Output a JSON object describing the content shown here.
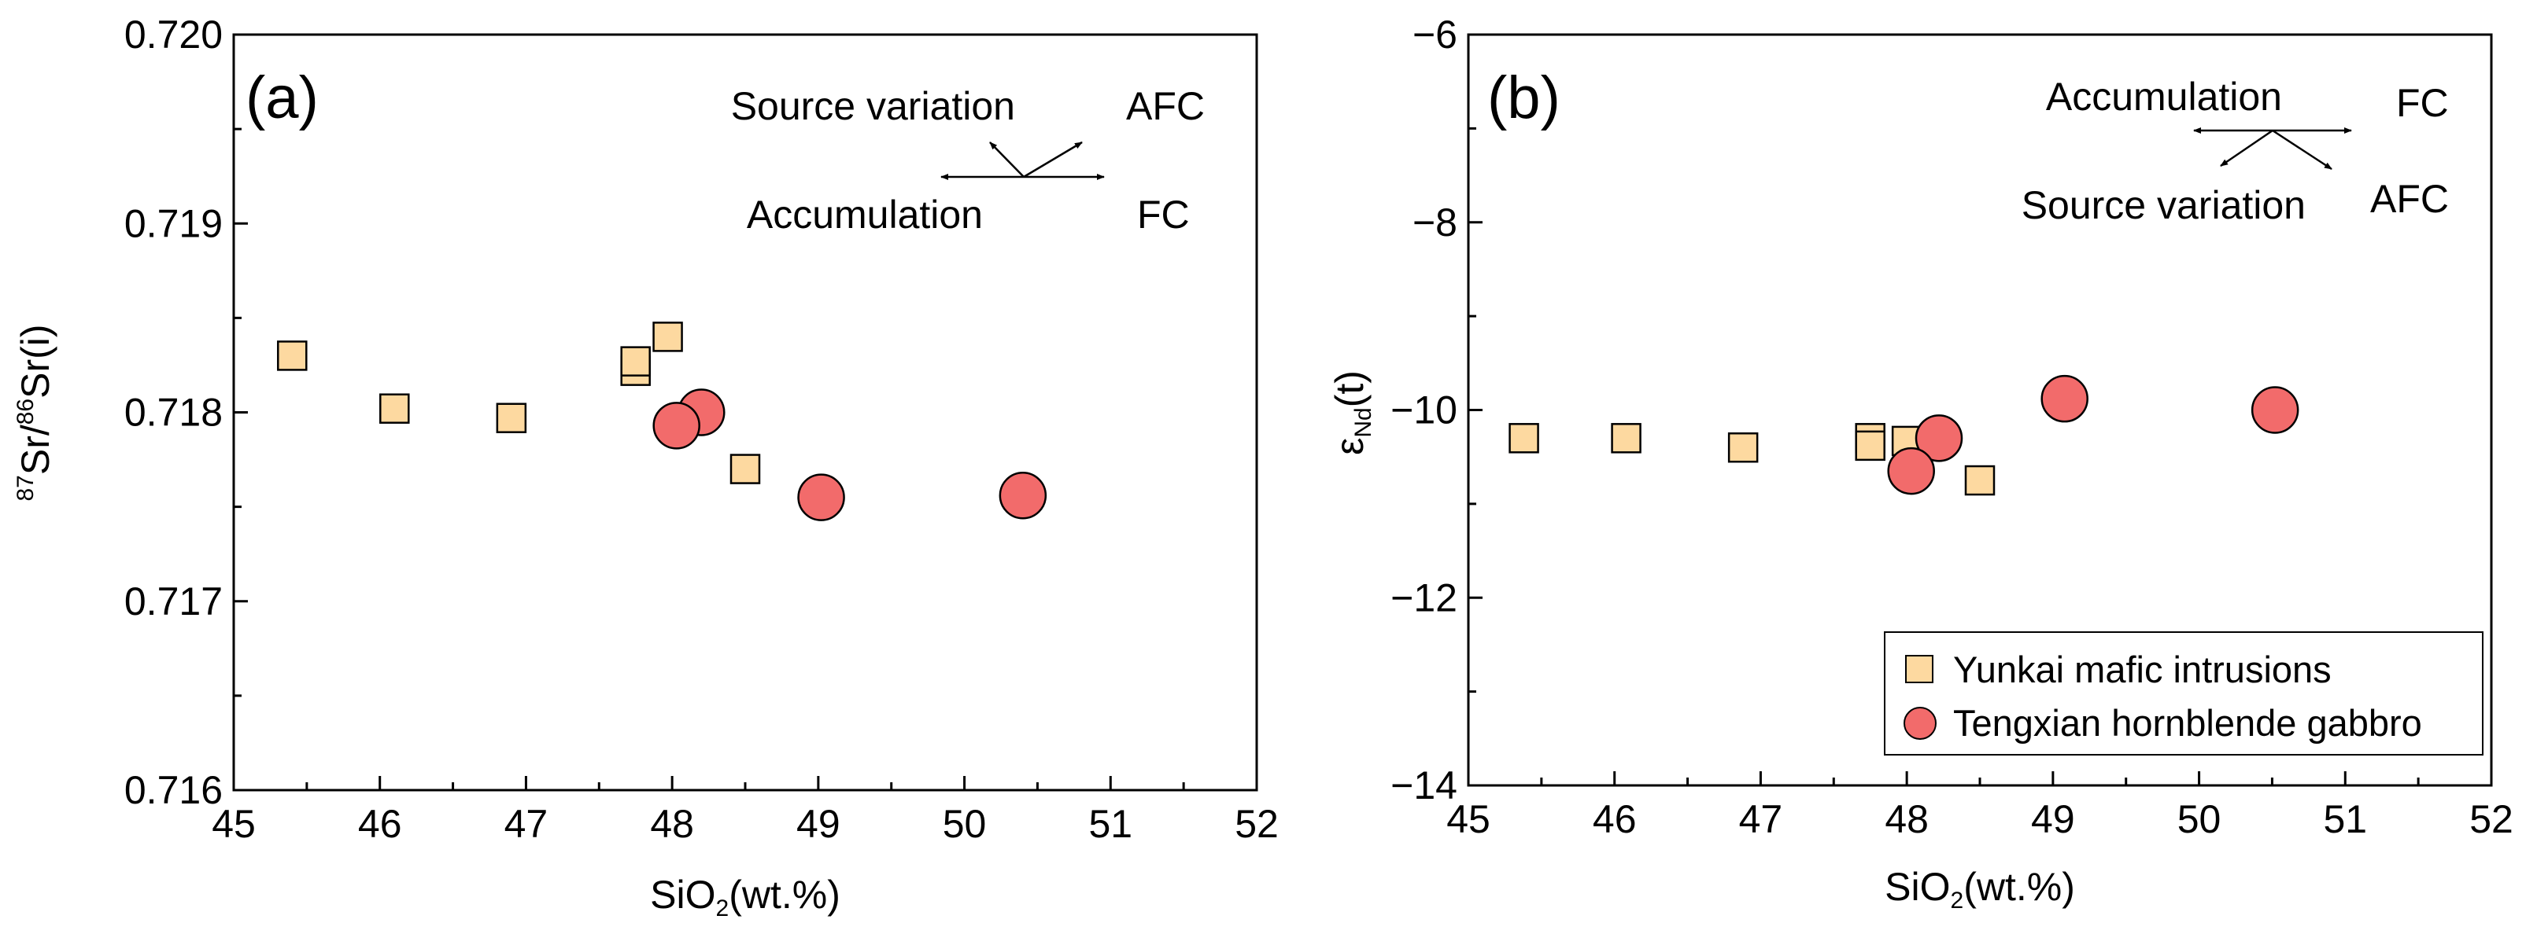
{
  "chart_data": [
    {
      "type": "scatter",
      "panel_label": "(a)",
      "xlabel": "SiO",
      "xlabel_sub": "2",
      "xlabel_tail": "(wt.%)",
      "ylabel": "Sr/ Sr(i)",
      "ylabel_sup1": "87",
      "ylabel_sup2": "86",
      "xlim": [
        45,
        52
      ],
      "ylim": [
        0.716,
        0.72
      ],
      "xticks": [
        45,
        46,
        47,
        48,
        49,
        50,
        51,
        52
      ],
      "xtick_labels": [
        "45",
        "46",
        "47",
        "48",
        "49",
        "50",
        "51",
        "52"
      ],
      "yticks": [
        0.716,
        0.717,
        0.718,
        0.719,
        0.72
      ],
      "ytick_labels": [
        "0.716",
        "0.717",
        "0.718",
        "0.719",
        "0.720"
      ],
      "series": [
        {
          "name": "Yunkai mafic intrusions",
          "marker": "square",
          "color": "#fdd9a0",
          "points": [
            {
              "x": 45.4,
              "y": 0.7183
            },
            {
              "x": 46.1,
              "y": 0.71802
            },
            {
              "x": 46.9,
              "y": 0.71797
            },
            {
              "x": 47.75,
              "y": 0.71822
            },
            {
              "x": 47.75,
              "y": 0.71827
            },
            {
              "x": 47.97,
              "y": 0.7184
            },
            {
              "x": 48.5,
              "y": 0.7177
            }
          ]
        },
        {
          "name": "Tengxian hornblende gabbro",
          "marker": "circle",
          "color": "#f26b6b",
          "points": [
            {
              "x": 48.2,
              "y": 0.718
            },
            {
              "x": 48.03,
              "y": 0.71793
            },
            {
              "x": 49.02,
              "y": 0.71755
            },
            {
              "x": 50.4,
              "y": 0.71756
            }
          ]
        }
      ],
      "annotations": {
        "source_variation": "Source variation",
        "afc": "AFC",
        "accumulation": "Accumulation",
        "fc": "FC"
      }
    },
    {
      "type": "scatter",
      "panel_label": "(b)",
      "xlabel": "SiO",
      "xlabel_sub": "2",
      "xlabel_tail": "(wt.%)",
      "ylabel": "ε",
      "ylabel_sub": "Nd",
      "ylabel_tail": "(t)",
      "xlim": [
        45,
        52
      ],
      "ylim": [
        -14,
        -6
      ],
      "xticks": [
        45,
        46,
        47,
        48,
        49,
        50,
        51,
        52
      ],
      "xtick_labels": [
        "45",
        "46",
        "47",
        "48",
        "49",
        "50",
        "51",
        "52"
      ],
      "yticks": [
        -14,
        -12,
        -10,
        -8,
        -6
      ],
      "ytick_labels": [
        "−14",
        "−12",
        "−10",
        "−8",
        "−6"
      ],
      "series": [
        {
          "name": "Yunkai mafic intrusions",
          "marker": "square",
          "color": "#fdd9a0",
          "points": [
            {
              "x": 45.38,
              "y": -10.3
            },
            {
              "x": 46.08,
              "y": -10.3
            },
            {
              "x": 46.88,
              "y": -10.4
            },
            {
              "x": 47.75,
              "y": -10.3
            },
            {
              "x": 47.75,
              "y": -10.38
            },
            {
              "x": 48.0,
              "y": -10.33
            },
            {
              "x": 48.5,
              "y": -10.75
            }
          ]
        },
        {
          "name": "Tengxian hornblende gabbro",
          "marker": "circle",
          "color": "#f26b6b",
          "points": [
            {
              "x": 48.22,
              "y": -10.3
            },
            {
              "x": 48.03,
              "y": -10.65
            },
            {
              "x": 49.08,
              "y": -9.88
            },
            {
              "x": 50.52,
              "y": -10.0
            }
          ]
        }
      ],
      "annotations": {
        "accumulation": "Accumulation",
        "fc": "FC",
        "source_variation": "Source variation",
        "afc": "AFC"
      },
      "legend": {
        "position": "bottom-right",
        "entries": [
          "Yunkai mafic intrusions",
          "Tengxian hornblende gabbro"
        ]
      }
    }
  ]
}
